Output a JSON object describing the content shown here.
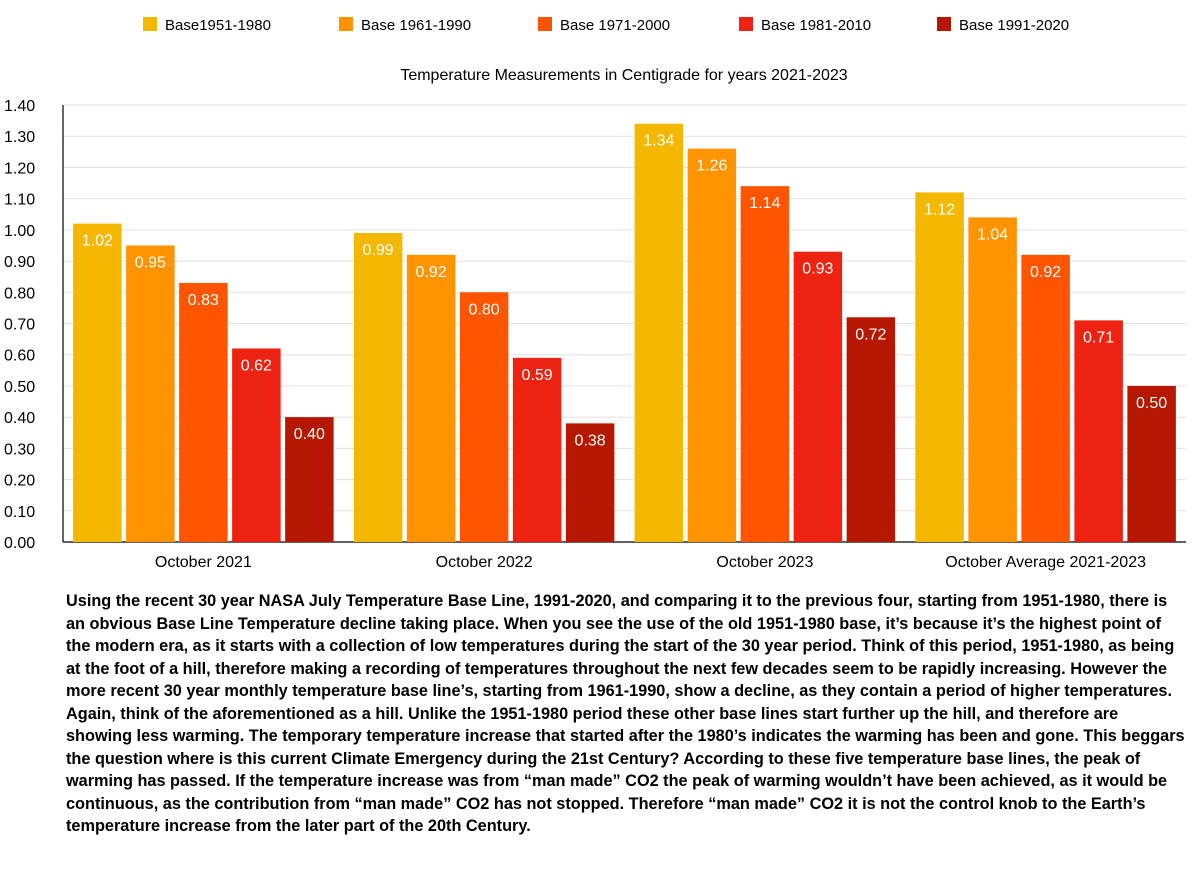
{
  "chart_data": {
    "type": "bar",
    "title": "Temperature Measurements in Centigrade for years 2021-2023",
    "categories": [
      "October 2021",
      "October 2022",
      "October 2023",
      "October Average 2021-2023"
    ],
    "series": [
      {
        "name": "Base1951-1980",
        "color": "#F5B800",
        "values": [
          1.02,
          0.99,
          1.34,
          1.12
        ],
        "labels": [
          "1.02",
          "0.99",
          "1.34",
          "1.12"
        ]
      },
      {
        "name": "Base 1961-1990",
        "color": "#FF9300",
        "values": [
          0.95,
          0.92,
          1.26,
          1.04
        ],
        "labels": [
          "0.95",
          "0.92",
          "1.26",
          "1.04"
        ]
      },
      {
        "name": "Base 1971-2000",
        "color": "#FF5500",
        "values": [
          0.83,
          0.8,
          1.14,
          0.92
        ],
        "labels": [
          "0.83",
          "0.80",
          "1.14",
          "0.92"
        ]
      },
      {
        "name": "Base 1981-2010",
        "color": "#EE2211",
        "values": [
          0.62,
          0.59,
          0.93,
          0.71
        ],
        "labels": [
          "0.62",
          "0.59",
          "0.93",
          "0.71"
        ]
      },
      {
        "name": "Base 1991-2020",
        "color": "#B51700",
        "values": [
          0.4,
          0.38,
          0.72,
          0.5
        ],
        "labels": [
          "0.40",
          "0.38",
          "0.72",
          "0.50"
        ]
      }
    ],
    "ylim": [
      0,
      1.4
    ],
    "yticks": [
      "0.00",
      "0.10",
      "0.20",
      "0.30",
      "0.40",
      "0.50",
      "0.60",
      "0.70",
      "0.80",
      "0.90",
      "1.00",
      "1.10",
      "1.20",
      "1.30",
      "1.40"
    ],
    "grid": true,
    "legend_position": "top"
  },
  "description": "Using the recent 30 year NASA July Temperature Base Line, 1991-2020, and comparing it to the previous four, starting from 1951-1980, there is an obvious Base Line Temperature decline taking place. When you see the use of the old 1951-1980 base, it’s because it’s the highest point of the modern era, as it starts with a collection of low temperatures during the start of the 30 year period. Think of this period, 1951-1980, as being at the foot of a hill, therefore making a recording of temperatures throughout the next few decades seem to be rapidly increasing. However the more recent 30 year monthly temperature base line’s, starting from 1961-1990, show a decline, as they contain a period of higher temperatures. Again, think of the aforementioned as a hill. Unlike the 1951-1980 period these other base lines start further up the hill, and therefore are showing less warming. The temporary temperature increase that started after the 1980’s indicates the warming has been and gone. This beggars the question where is this current Climate Emergency during the 21st Century? According to these five temperature base lines, the peak of warming has passed. If the temperature increase was from “man made” CO2 the peak of warming wouldn’t have been achieved, as it would be continuous, as the contribution from “man made” CO2 has not stopped. Therefore “man made” CO2 it is not the control knob to the Earth’s temperature increase from the later part of the 20th Century."
}
